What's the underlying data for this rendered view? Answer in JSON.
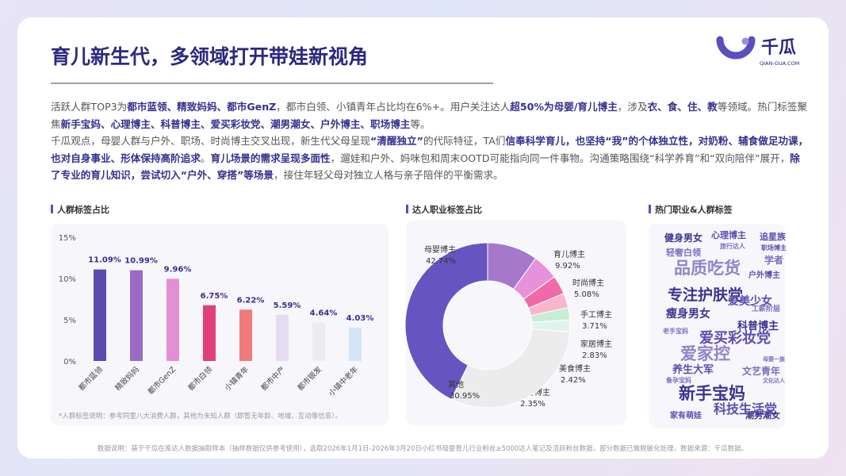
{
  "header": {
    "title": "育儿新生代，多领域打开带娃新视角",
    "logo": "千瓜",
    "logo_sub": "QIAN-GUA.COM"
  },
  "paragraphs": [
    {
      "segments": [
        {
          "text": "活跃人群TOP3为"
        },
        {
          "text": "都市蓝领、精致妈妈、都市GenZ",
          "bold": true
        },
        {
          "text": "，都市白领、小镇青年占比均在6%+。用户关注达人"
        },
        {
          "text": "超50%为母婴/育儿博主",
          "bold": true
        },
        {
          "text": "，涉及"
        },
        {
          "text": "衣、食、住、教",
          "bold": true
        },
        {
          "text": "等领域。热门标签聚焦"
        },
        {
          "text": "新手宝妈、心理博主、科普博主、爱买彩妆党、潮男潮女、户外博主、职场博主",
          "bold": true
        },
        {
          "text": "等。"
        }
      ]
    },
    {
      "segments": [
        {
          "text": "千瓜观点，母婴人群与户外、职场、时尚博主交叉出现，新生代父母呈现"
        },
        {
          "text": "“清醒独立”",
          "bold": true
        },
        {
          "text": "的代际特征，TA们"
        },
        {
          "text": "信奉科学育儿，也坚持“我”的个体独立性，对奶粉、辅食做足功课，也对自身事业、形体保持高阶追求",
          "bold": true
        },
        {
          "text": "。"
        },
        {
          "text": "育儿场景的需求呈现多面性",
          "bold": true
        },
        {
          "text": "，遛娃和户外、妈咪包和周末OOTD可能指向同一件事物。沟通策略围绕“科学养育”和“双向陪伴”展开，"
        },
        {
          "text": "除了专业的育儿知识，尝试切入“户外、穿搭”等场景",
          "bold": true
        },
        {
          "text": "，接住年轻父母对独立人格与亲子陪伴的平衡需求。"
        }
      ]
    }
  ],
  "chart_data": [
    {
      "type": "bar",
      "title": "人群标签占比",
      "categories": [
        "都市蓝领",
        "精致妈妈",
        "都市GenZ",
        "都市白领",
        "小镇青年",
        "都市中产",
        "都市银发",
        "小镇中老年"
      ],
      "values": [
        11.09,
        10.99,
        9.96,
        6.75,
        6.22,
        5.59,
        4.64,
        4.03
      ],
      "value_labels": [
        "11.09%",
        "10.99%",
        "9.96%",
        "6.75%",
        "6.22%",
        "5.59%",
        "4.64%",
        "4.03%"
      ],
      "colors": [
        "#5b4bb0",
        "#9b6ac4",
        "#e28fd4",
        "#e0407a",
        "#f07a7a",
        "#e6dcf2",
        "#ececec",
        "#d3e5f6"
      ],
      "ylim": [
        0,
        15
      ],
      "yticks": [
        {
          "value": 0,
          "label": "0%"
        },
        {
          "value": 5,
          "label": "5%"
        },
        {
          "value": 10,
          "label": "10%"
        },
        {
          "value": 15,
          "label": "15%"
        }
      ],
      "grid": false,
      "note": "*人群标签说明：参考同里八大消费人群，其他为未知人群（即暂无年龄、地域、互动等信息）。"
    },
    {
      "type": "pie",
      "title": "达人职业标签占比",
      "categories": [
        "母婴博主",
        "育儿博主",
        "时尚博主",
        "手工博主",
        "家居博主",
        "美食博主",
        "教育博主",
        "其他"
      ],
      "values": [
        42.74,
        9.92,
        5.08,
        3.71,
        2.83,
        2.42,
        2.35,
        30.95
      ],
      "value_labels": [
        "42.74%",
        "9.92%",
        "5.08%",
        "3.71%",
        "2.83%",
        "2.42%",
        "2.35%",
        "30.95%"
      ],
      "colors": [
        "#6655c0",
        "#a578cc",
        "#e592da",
        "#f06aa8",
        "#f7b6cc",
        "#c9ecd6",
        "#e2f3ee",
        "#ececec"
      ]
    },
    {
      "type": "wordcloud",
      "title": "热门职业&人群标签",
      "words": [
        "健身男女",
        "心理博主",
        "旅行达人",
        "追星族",
        "轻奢白领",
        "职场博主",
        "品质吃货",
        "学者",
        "户外博主",
        "专注护肤党",
        "爱美少女",
        "瘦身男女",
        "工薪阶层",
        "科普博主",
        "老手宝妈",
        "爱买彩妆党",
        "爱家控",
        "母婴一族",
        "养生大军",
        "文艺青年",
        "备孕宝妈",
        "文化达人",
        "新手宝妈",
        "科技生活党",
        "家有萌娃",
        "潮男潮女"
      ]
    }
  ],
  "footnote": "数据说明：基于千瓜在库达人数据抽取样本（抽样数据仅供参考使用），选取2026年1月1日-2026年3月20日小红书母婴育儿行业粉丝≥5000达人笔记及活跃粉丝数据，部分数据已做脱敏化处理，数据来源：千瓜数据。"
}
